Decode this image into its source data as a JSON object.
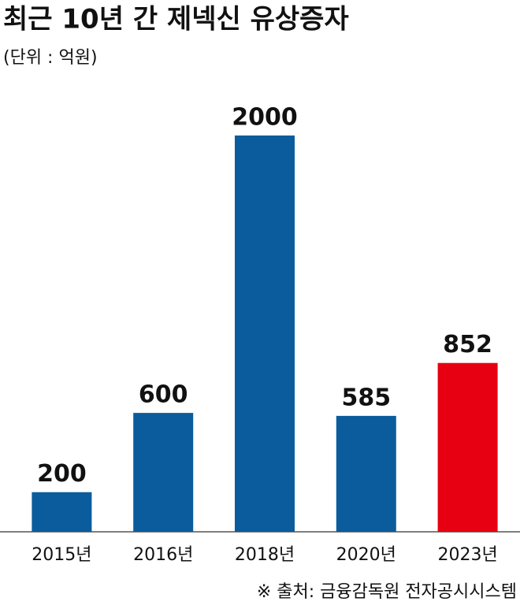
{
  "chart_data": {
    "type": "bar",
    "title": "최근 10년 간 제넥신 유상증자",
    "subtitle": "(단위 : 억원)",
    "categories": [
      "2015년",
      "2016년",
      "2018년",
      "2020년",
      "2023년"
    ],
    "values": [
      200,
      600,
      2000,
      585,
      852
    ],
    "colors": [
      "#0a5c9c",
      "#0a5c9c",
      "#0a5c9c",
      "#0a5c9c",
      "#e60012"
    ],
    "ylim": [
      0,
      2000
    ],
    "source": "※ 출처: 금융감독원 전자공시시스템"
  }
}
